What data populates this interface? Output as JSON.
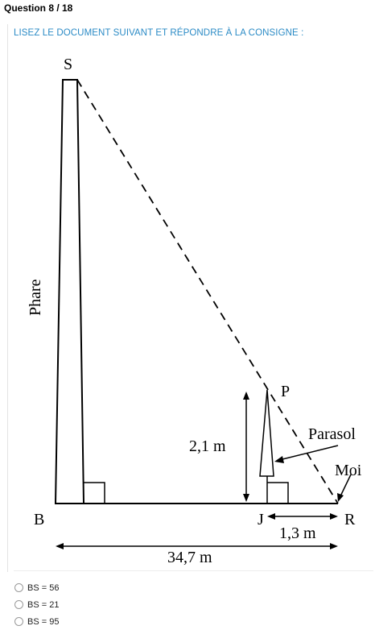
{
  "question": {
    "title": "Question 8 / 18"
  },
  "instruction": "LISEZ LE DOCUMENT SUIVANT ET RÉPONDRE À LA CONSIGNE :",
  "figure": {
    "label_S": "S",
    "label_phare": "Phare",
    "label_B": "B",
    "label_P": "P",
    "label_parasol": "Parasol",
    "label_moi": "Moi",
    "label_J": "J",
    "label_R": "R",
    "height_parasol": "2,1 m",
    "dist_JR": "1,3 m",
    "dist_BR": "34,7 m"
  },
  "options": [
    {
      "label": "BS = 56"
    },
    {
      "label": "BS = 21"
    },
    {
      "label": "BS = 95"
    }
  ]
}
